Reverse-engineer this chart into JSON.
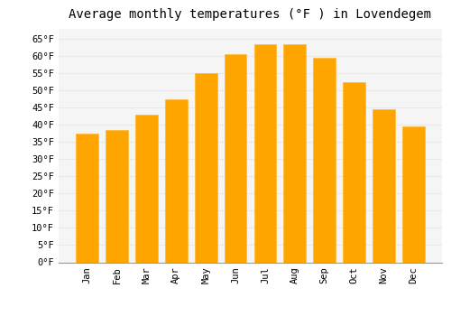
{
  "title": "Average monthly temperatures (°F ) in Lovendegem",
  "months": [
    "Jan",
    "Feb",
    "Mar",
    "Apr",
    "May",
    "Jun",
    "Jul",
    "Aug",
    "Sep",
    "Oct",
    "Nov",
    "Dec"
  ],
  "values": [
    37.5,
    38.5,
    43.0,
    47.5,
    55.0,
    60.5,
    63.5,
    63.5,
    59.5,
    52.5,
    44.5,
    39.5
  ],
  "bar_color": "#FFA500",
  "bar_edge_color": "#FFB733",
  "background_color": "#ffffff",
  "plot_bg_color": "#f5f5f5",
  "grid_color": "#e8e8e8",
  "ylim": [
    0,
    68
  ],
  "yticks": [
    0,
    5,
    10,
    15,
    20,
    25,
    30,
    35,
    40,
    45,
    50,
    55,
    60,
    65
  ],
  "title_fontsize": 10,
  "tick_fontsize": 7.5,
  "tick_font": "monospace",
  "bar_width": 0.75
}
